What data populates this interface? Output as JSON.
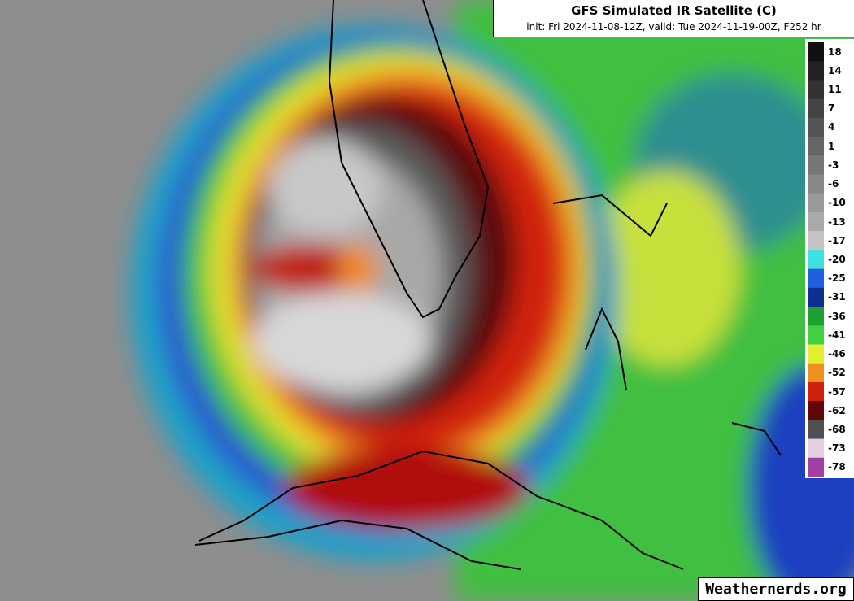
{
  "header": {
    "title": "GFS Simulated IR Satellite (C)",
    "subtitle": "init: Fri 2024-11-08-12Z, valid: Tue 2024-11-19-00Z, F252 hr"
  },
  "colorbar": {
    "ticks": [
      18,
      14,
      11,
      7,
      4,
      1,
      -3,
      -6,
      -10,
      -13,
      -17,
      -20,
      -25,
      -31,
      -36,
      -41,
      -46,
      -52,
      -57,
      -62,
      -68,
      -73,
      -78
    ]
  },
  "watermark": "Weathernerds.org"
}
